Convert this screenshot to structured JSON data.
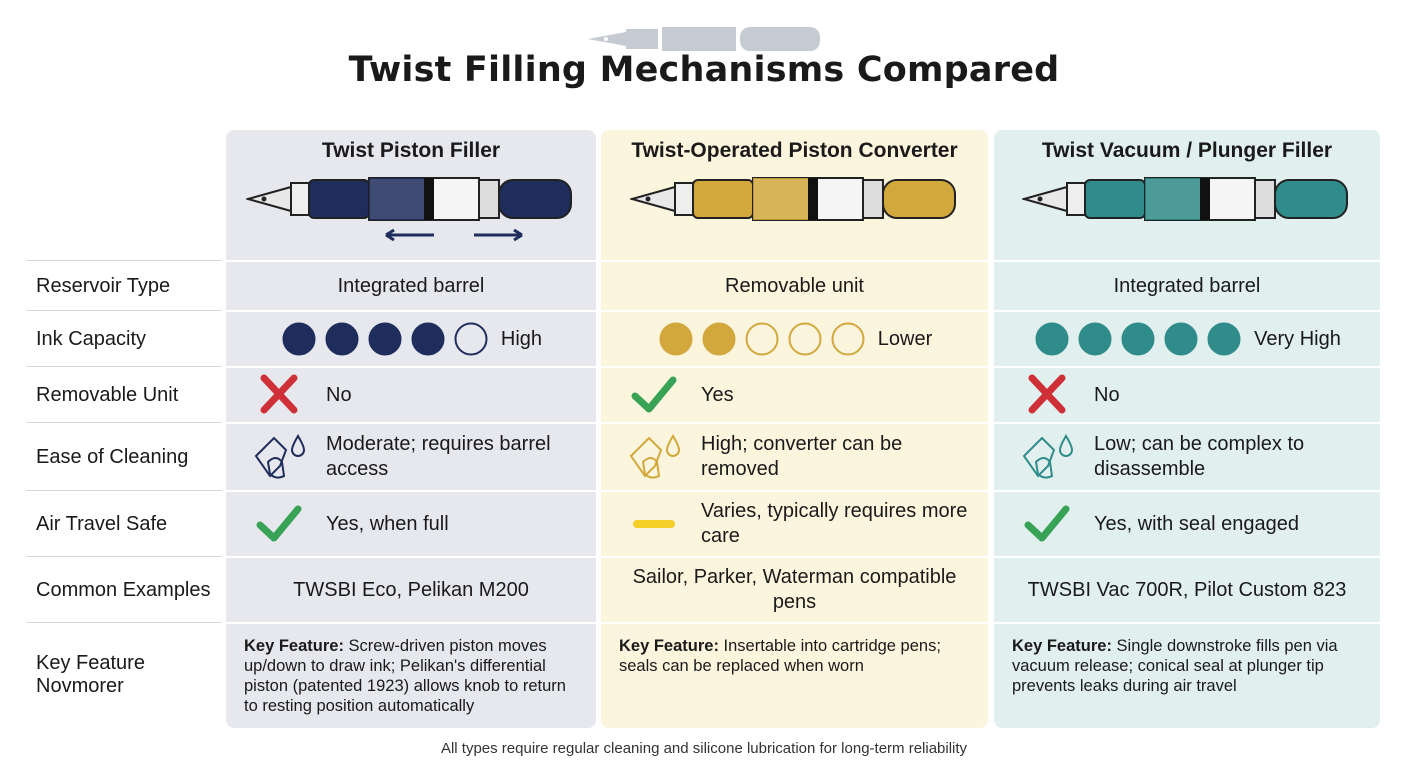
{
  "header": {
    "title": "Twist Filling Mechanisms Compared"
  },
  "columns": [
    {
      "name": "Twist Piston Filler",
      "color": "#1f2d5c",
      "background": "#e6e8ee"
    },
    {
      "name": "Twist-Operated Piston Converter",
      "color": "#d2a83c",
      "background": "#fcf5de"
    },
    {
      "name": "Twist Vacuum / Plunger Filler",
      "color": "#2f8c8a",
      "background": "#e1efee"
    }
  ],
  "rows": [
    {
      "label": "Reservoir Type",
      "cells": [
        {
          "text": "Integrated barrel"
        },
        {
          "text": "Removable unit"
        },
        {
          "text": "Integrated barrel"
        }
      ]
    },
    {
      "label": "Ink Capacity",
      "scale_max": 5,
      "cells": [
        {
          "filled": 4,
          "text": "High"
        },
        {
          "filled": 2,
          "text": "Lower"
        },
        {
          "filled": 5,
          "text": "Very High"
        }
      ]
    },
    {
      "label": "Removable Unit",
      "cells": [
        {
          "icon": "cross",
          "text": "No"
        },
        {
          "icon": "check",
          "text": "Yes"
        },
        {
          "icon": "cross",
          "text": "No"
        }
      ]
    },
    {
      "label": "Ease of Cleaning",
      "cells": [
        {
          "icon": "cleaning",
          "text": "Moderate; requires barrel access"
        },
        {
          "icon": "cleaning",
          "text": "High; converter can be removed"
        },
        {
          "icon": "cleaning",
          "text": "Low; can be complex to disassemble"
        }
      ]
    },
    {
      "label": "Air Travel Safe",
      "cells": [
        {
          "icon": "check",
          "text": "Yes, when full"
        },
        {
          "icon": "dash",
          "text": "Varies, typically requires more care"
        },
        {
          "icon": "check",
          "text": "Yes, with seal engaged"
        }
      ]
    },
    {
      "label": "Common Examples",
      "cells": [
        {
          "text": "TWSBI Eco, Pelikan M200"
        },
        {
          "text": "Sailor, Parker, Waterman compatible pens"
        },
        {
          "text": "TWSBI Vac 700R, Pilot Custom 823"
        }
      ]
    },
    {
      "label": "Key Feature Novmorer",
      "cells": [
        {
          "label": "Key Feature:",
          "text": "Screw-driven piston moves up/down to draw ink; Pelikan's differential piston (patented 1923) allows knob to return to resting position automatically"
        },
        {
          "label": "Key Feature:",
          "text": "Insertable into cartridge pens; seals can be replaced when worn"
        },
        {
          "label": "Key Feature:",
          "text": "Single downstroke fills pen via vacuum release; conical seal at plunger tip prevents leaks during air travel"
        }
      ]
    }
  ],
  "footer": {
    "note": "All types require regular cleaning and silicone lubrication for long-term reliability"
  }
}
